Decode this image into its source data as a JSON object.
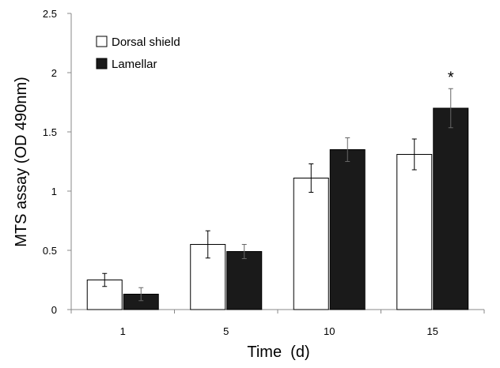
{
  "chart_data": {
    "type": "bar",
    "title": "",
    "xlabel": "Time  (d)",
    "ylabel": "MTS assay (OD 490nm)",
    "categories": [
      "1",
      "5",
      "10",
      "15"
    ],
    "ylim": [
      0,
      2.5
    ],
    "yticks": [
      "0",
      "0.5",
      "1",
      "1.5",
      "2",
      "2.5"
    ],
    "legend_position": "top-left",
    "series": [
      {
        "name": "Dorsal shield",
        "values": [
          0.25,
          0.55,
          1.11,
          1.31
        ],
        "errors": [
          0.055,
          0.115,
          0.12,
          0.13
        ],
        "fill": "#ffffff",
        "stroke": "#000000"
      },
      {
        "name": "Lamellar",
        "values": [
          0.13,
          0.49,
          1.35,
          1.7
        ],
        "errors": [
          0.055,
          0.06,
          0.1,
          0.165
        ],
        "fill": "#1a1a1a",
        "stroke": "#000000"
      }
    ],
    "annotations": [
      {
        "text": "*",
        "category": "15",
        "series": "Lamellar"
      }
    ]
  }
}
